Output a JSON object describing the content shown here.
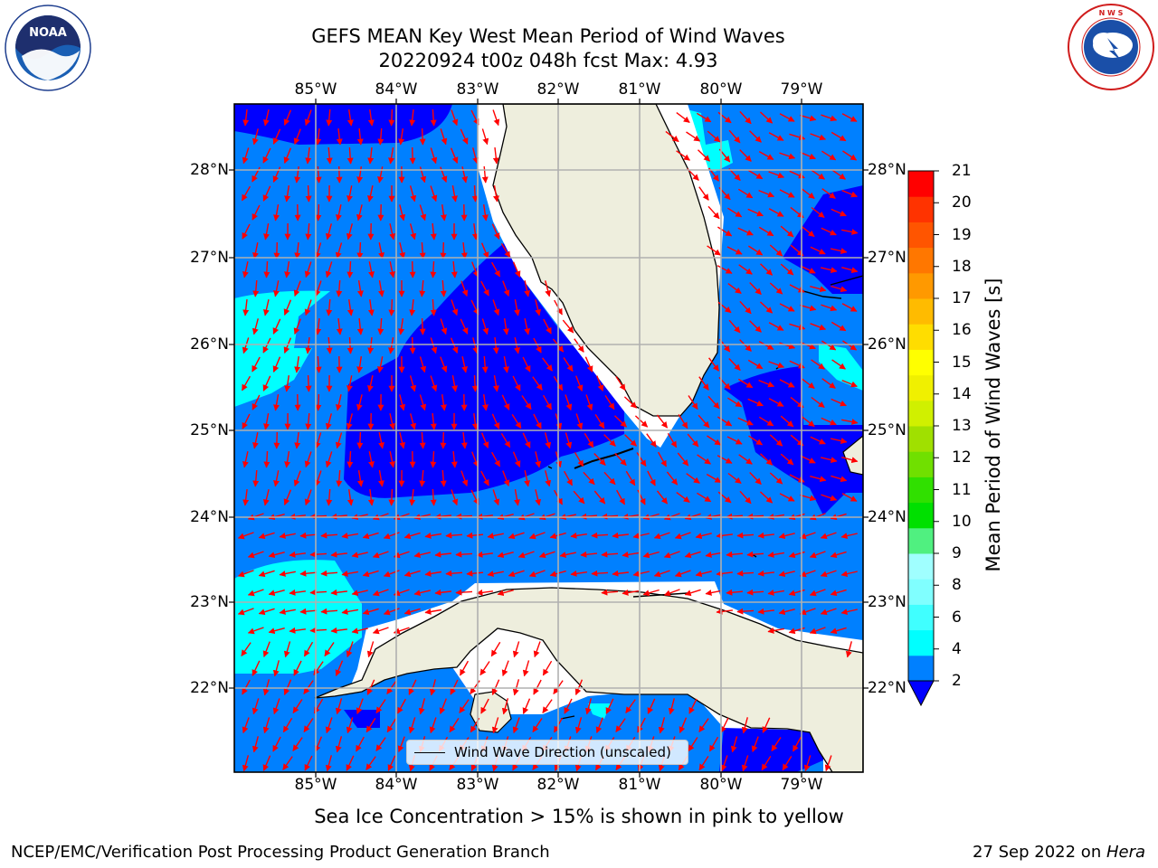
{
  "title": {
    "line1": "GEFS MEAN Key West Mean Period of Wind Waves",
    "line2": "20220924 t00z 048h fcst   Max: 4.93"
  },
  "map": {
    "lon_ticks": [
      "85°W",
      "84°W",
      "83°W",
      "82°W",
      "81°W",
      "80°W",
      "79°W"
    ],
    "lat_ticks": [
      "28°N",
      "27°N",
      "26°N",
      "25°N",
      "24°N",
      "23°N",
      "22°N"
    ],
    "legend_label": "Wind Wave Direction (unscaled)",
    "colors": {
      "ocean_main": "#0080ff",
      "ocean_dark": "#0000ff",
      "ocean_light": "#00ffff",
      "land": "#eeeedd",
      "arrow": "#ff0000",
      "grid": "#b0b0b0"
    }
  },
  "colorbar": {
    "label": "Mean Period of Wind Waves [s]",
    "ticks": [
      "21",
      "20",
      "19",
      "18",
      "17",
      "16",
      "15",
      "14",
      "13",
      "12",
      "11",
      "10",
      "9",
      "8",
      "6",
      "4",
      "2"
    ],
    "colors": [
      "#0080ff",
      "#00ffff",
      "#40ffff",
      "#80ffff",
      "#a0ffff",
      "#50f080",
      "#00e000",
      "#30e000",
      "#70e000",
      "#a0e000",
      "#d0f000",
      "#f0f000",
      "#ffff00",
      "#ffdd00",
      "#ffbb00",
      "#ff9900",
      "#ff7700",
      "#ff5500",
      "#ff3300",
      "#ff0000"
    ],
    "extend_color": "#0000ff"
  },
  "footer": {
    "note": "Sea Ice Concentration > 15% is shown in pink to yellow",
    "left": "NCEP/EMC/Verification Post Processing Product Generation Branch",
    "date": "27 Sep 2022 on ",
    "machine": "Hera"
  },
  "logos": {
    "noaa_text": "NOAA",
    "nws_text": "NATIONAL WEATHER SERVICE"
  }
}
